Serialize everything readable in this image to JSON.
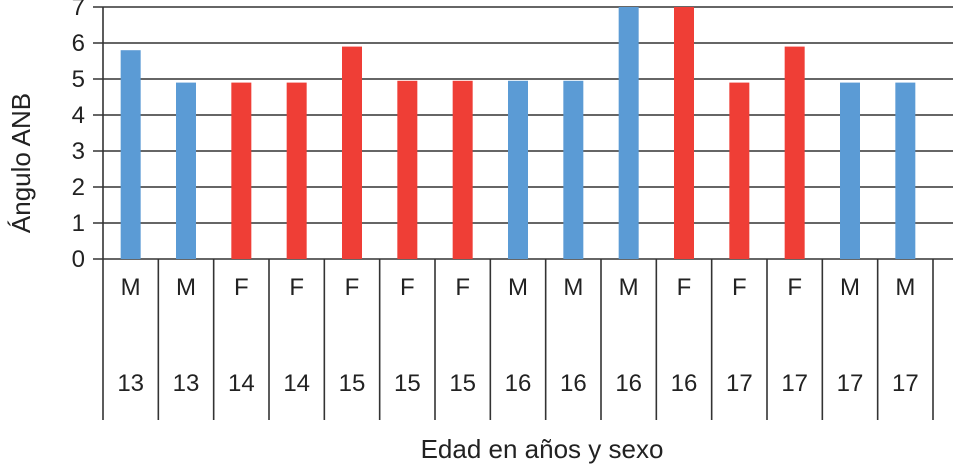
{
  "chart_data": {
    "type": "bar",
    "xlabel": "Edad en años y sexo",
    "ylabel": "Ángulo ANB",
    "ylim": [
      0,
      7
    ],
    "yticks": [
      "0",
      "1",
      "2",
      "3",
      "4",
      "5",
      "6",
      "7"
    ],
    "grid": true,
    "legend": "none",
    "categories": [
      {
        "sex": "M",
        "age": "13"
      },
      {
        "sex": "M",
        "age": "13"
      },
      {
        "sex": "F",
        "age": "14"
      },
      {
        "sex": "F",
        "age": "14"
      },
      {
        "sex": "F",
        "age": "15"
      },
      {
        "sex": "F",
        "age": "15"
      },
      {
        "sex": "F",
        "age": "15"
      },
      {
        "sex": "M",
        "age": "16"
      },
      {
        "sex": "M",
        "age": "16"
      },
      {
        "sex": "M",
        "age": "16"
      },
      {
        "sex": "F",
        "age": "16"
      },
      {
        "sex": "F",
        "age": "17"
      },
      {
        "sex": "F",
        "age": "17"
      },
      {
        "sex": "M",
        "age": "17"
      },
      {
        "sex": "M",
        "age": "17"
      }
    ],
    "values": [
      5.8,
      4.9,
      4.9,
      4.9,
      5.9,
      4.95,
      4.95,
      4.95,
      4.95,
      7.0,
      7.0,
      4.9,
      5.9,
      4.9,
      4.9
    ],
    "colors": {
      "M": "#5b9bd5",
      "F": "#ef3e36"
    }
  }
}
